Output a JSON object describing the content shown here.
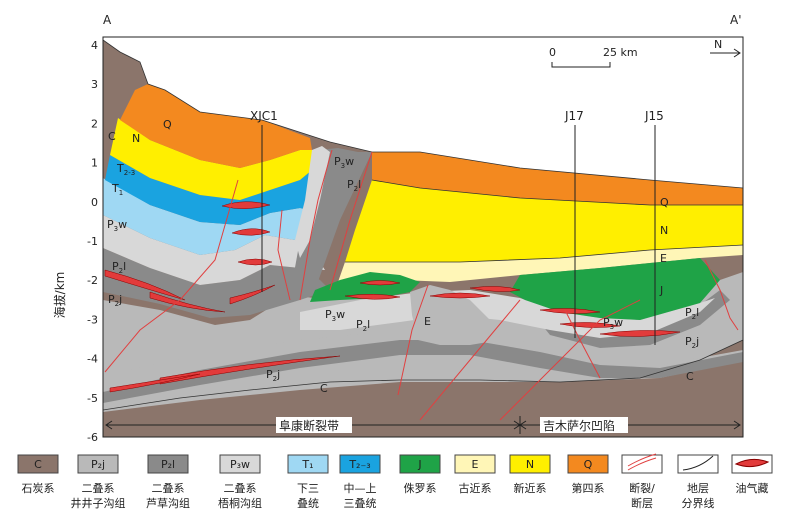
{
  "section": {
    "end_left": "A",
    "end_right": "A'",
    "north": "N",
    "scale_start": "0",
    "scale_end": "25 km",
    "ylabel": "海拔/km",
    "yticks": [
      "4",
      "3",
      "2",
      "1",
      "0",
      "-1",
      "-2",
      "-3",
      "-4",
      "-5",
      "-6"
    ],
    "wells": [
      "XJC1",
      "J17",
      "J15"
    ],
    "zones": [
      "阜康断裂带",
      "吉木萨尔凹陷"
    ]
  },
  "labels": {
    "c_left": "C",
    "n_left": "N",
    "q_left": "Q",
    "t23": "T",
    "t23_sub": "2-3",
    "t1": "T",
    "t1_sub": "1",
    "p3w_left": "P",
    "p3w_left_sub": "3",
    "p3w_left_tail": "w",
    "p2l_left": "P",
    "p2l_left_sub": "2",
    "p2l_left_tail": "l",
    "p2j_left": "P",
    "p2j_left_sub": "2",
    "p2j_left_tail": "j",
    "p3w_top": "P",
    "p3w_top_sub": "3",
    "p3w_top_tail": "w",
    "p2l_top": "P",
    "p2l_top_sub": "2",
    "p2l_top_tail": "l",
    "p3w_mid": "P",
    "p3w_mid_sub": "3",
    "p3w_mid_tail": "w",
    "p2l_mid": "P",
    "p2l_mid_sub": "2",
    "p2l_mid_tail": "l",
    "e_mid": "E",
    "p2j_bottom": "P",
    "p2j_bottom_sub": "2",
    "p2j_bottom_tail": "j",
    "c_bottom": "C",
    "q_right": "Q",
    "n_right": "N",
    "e_right": "E",
    "j_right": "J",
    "p3w_right": "P",
    "p3w_right_sub": "3",
    "p3w_right_tail": "w",
    "p2l_right": "P",
    "p2l_right_sub": "2",
    "p2l_right_tail": "l",
    "p2j_right": "P",
    "p2j_right_sub": "2",
    "p2j_right_tail": "j",
    "c_right": "C"
  },
  "legend": [
    {
      "swatch": "C",
      "name": "石炭系",
      "name2": "",
      "color": "#8b756b"
    },
    {
      "swatch": "P₂j",
      "name": "二叠系",
      "name2": "井井子沟组",
      "color": "#b9b9b9"
    },
    {
      "swatch": "P₂l",
      "name": "二叠系",
      "name2": "芦草沟组",
      "color": "#8a8a8a"
    },
    {
      "swatch": "P₃w",
      "name": "二叠系",
      "name2": "梧桐沟组",
      "color": "#d8d8d8"
    },
    {
      "swatch": "T₁",
      "name": "下三",
      "name2": "叠统",
      "color": "#9fd8f3"
    },
    {
      "swatch": "T₂₋₃",
      "name": "中—上",
      "name2": "三叠统",
      "color": "#1aa3e0"
    },
    {
      "swatch": "J",
      "name": "侏罗系",
      "name2": "",
      "color": "#1fa347"
    },
    {
      "swatch": "E",
      "name": "古近系",
      "name2": "",
      "color": "#fff6b7"
    },
    {
      "swatch": "N",
      "name": "新近系",
      "name2": "",
      "color": "#ffef00"
    },
    {
      "swatch": "Q",
      "name": "第四系",
      "name2": "",
      "color": "#f3891f"
    },
    {
      "swatch": "",
      "name": "断裂/",
      "name2": "断层",
      "color": "#ffffff"
    },
    {
      "swatch": "",
      "name": "地层",
      "name2": "分界线",
      "color": "#ffffff"
    },
    {
      "swatch": "",
      "name": "油气藏",
      "name2": "",
      "color": "#ffffff"
    }
  ]
}
